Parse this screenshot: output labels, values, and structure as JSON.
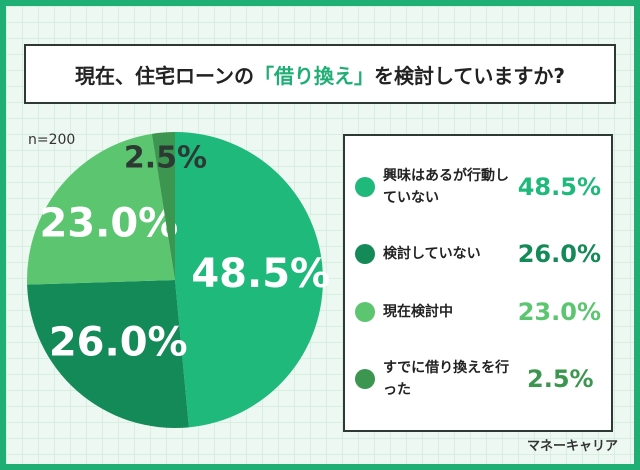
{
  "chart_data": {
    "type": "pie",
    "title_parts": [
      "現在、住宅ローンの",
      "「借り換え」",
      "を検討していますか?"
    ],
    "note": "n=200",
    "categories": [
      "興味はあるが行動していない",
      "検討していない",
      "現在検討中",
      "すでに借り換えを行った"
    ],
    "values": [
      48.5,
      26.0,
      23.0,
      2.5
    ],
    "value_labels": [
      "48.5%",
      "26.0%",
      "23.0%",
      "2.5%"
    ],
    "colors": [
      "#1fb97c",
      "#158a59",
      "#5bc66f",
      "#3d9650"
    ],
    "source": "マネーキャリア"
  }
}
